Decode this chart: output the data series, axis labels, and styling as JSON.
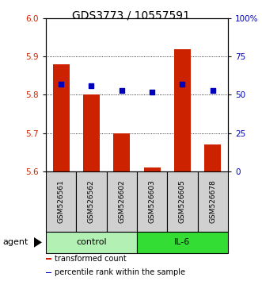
{
  "title": "GDS3773 / 10557591",
  "samples": [
    "GSM526561",
    "GSM526562",
    "GSM526602",
    "GSM526603",
    "GSM526605",
    "GSM526678"
  ],
  "transformed_counts": [
    5.88,
    5.8,
    5.7,
    5.61,
    5.92,
    5.67
  ],
  "percentile_ranks": [
    57,
    56,
    53,
    52,
    57,
    53
  ],
  "ylim_left": [
    5.6,
    6.0
  ],
  "ylim_right": [
    0,
    100
  ],
  "yticks_left": [
    5.6,
    5.7,
    5.8,
    5.9,
    6.0
  ],
  "yticks_right": [
    0,
    25,
    50,
    75,
    100
  ],
  "ytick_labels_right": [
    "0",
    "25",
    "50",
    "75",
    "100%"
  ],
  "groups": [
    {
      "label": "control",
      "indices": [
        0,
        1,
        2
      ],
      "color": "#b3f0b3"
    },
    {
      "label": "IL-6",
      "indices": [
        3,
        4,
        5
      ],
      "color": "#33dd33"
    }
  ],
  "bar_color": "#cc2200",
  "dot_color": "#0000bb",
  "bar_width": 0.55,
  "grid_color": "#000000",
  "sample_box_color": "#d0d0d0",
  "agent_label": "agent",
  "legend_items": [
    {
      "label": "transformed count",
      "color": "#cc2200"
    },
    {
      "label": "percentile rank within the sample",
      "color": "#0000bb"
    }
  ],
  "title_fontsize": 10,
  "tick_fontsize": 7.5,
  "legend_fontsize": 7,
  "axis_label_color_left": "#cc2200",
  "axis_label_color_right": "#0000bb"
}
